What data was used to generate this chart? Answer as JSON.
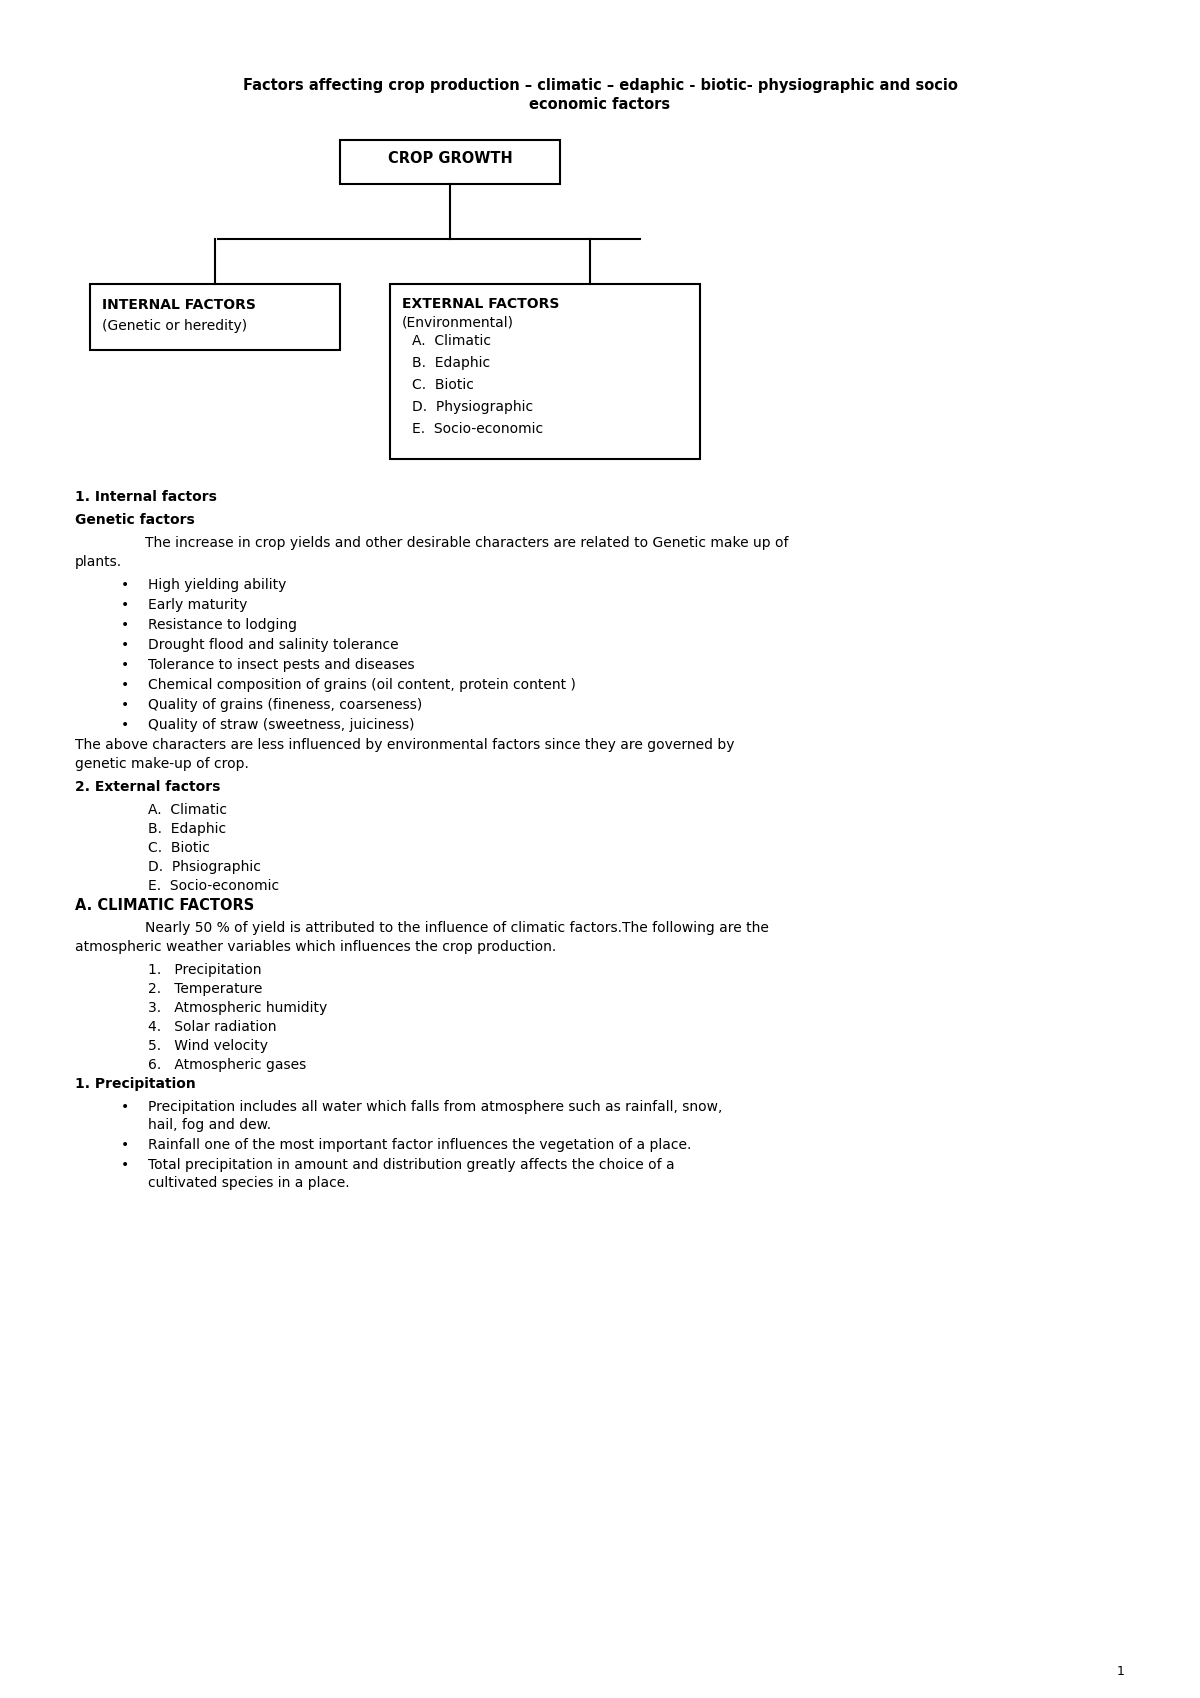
{
  "bg_color": "#ffffff",
  "page_title_line1": "Factors affecting crop production – climatic – edaphic - biotic- physiographic and socio",
  "page_title_line2": "economic factors",
  "diagram": {
    "root_label": "CROP GROWTH",
    "left_box_line1": "INTERNAL FACTORS",
    "left_box_line2": "(Genetic or heredity)",
    "right_box_line1": "EXTERNAL FACTORS",
    "right_box_line2": "(Environmental)",
    "right_box_items": [
      "A.  Climatic",
      "B.  Edaphic",
      "C.  Biotic",
      "D.  Physiographic",
      "E.  Socio-economic"
    ]
  },
  "sections": [
    {
      "type": "heading_bold",
      "text": "1. Internal factors"
    },
    {
      "type": "heading_bold",
      "text": "Genetic factors"
    },
    {
      "type": "paragraph_indent",
      "text": "The increase in crop yields and other desirable characters are related to Genetic make up of plants."
    },
    {
      "type": "bullet",
      "text": "High yielding ability"
    },
    {
      "type": "bullet",
      "text": "Early maturity"
    },
    {
      "type": "bullet",
      "text": "Resistance to lodging"
    },
    {
      "type": "bullet",
      "text": "Drought flood and salinity tolerance"
    },
    {
      "type": "bullet",
      "text": "Tolerance to insect pests and diseases"
    },
    {
      "type": "bullet",
      "text": "Chemical composition of grains (oil content, protein content )"
    },
    {
      "type": "bullet",
      "text": "Quality of grains (fineness, coarseness)"
    },
    {
      "type": "bullet",
      "text": "Quality of straw (sweetness, juiciness)"
    },
    {
      "type": "paragraph_noindent",
      "text": "The above characters are less influenced by environmental factors since they are governed by genetic make-up of crop."
    },
    {
      "type": "heading_bold",
      "text": "2. External factors"
    },
    {
      "type": "alpha_item",
      "text": "A.  Climatic"
    },
    {
      "type": "alpha_item",
      "text": "B.  Edaphic"
    },
    {
      "type": "alpha_item",
      "text": "C.  Biotic"
    },
    {
      "type": "alpha_item",
      "text": "D.  Phsiographic"
    },
    {
      "type": "alpha_item",
      "text": "E.  Socio-economic"
    },
    {
      "type": "heading_bold_caps",
      "text": "A. CLIMATIC FACTORS"
    },
    {
      "type": "paragraph_indent",
      "text": "Nearly 50 % of yield is attributed to the influence of climatic factors.The following are the atmospheric weather variables which influences the crop production."
    },
    {
      "type": "numbered_item",
      "text": "1.   Precipitation"
    },
    {
      "type": "numbered_item",
      "text": "2.   Temperature"
    },
    {
      "type": "numbered_item",
      "text": "3.   Atmospheric humidity"
    },
    {
      "type": "numbered_item",
      "text": "4.   Solar radiation"
    },
    {
      "type": "numbered_item",
      "text": "5.   Wind velocity"
    },
    {
      "type": "numbered_item",
      "text": "6.   Atmospheric gases"
    },
    {
      "type": "heading_bold",
      "text": "1. Precipitation"
    },
    {
      "type": "bullet",
      "text": "Precipitation includes all water which falls from atmosphere such as rainfall, snow, hail, fog and dew."
    },
    {
      "type": "bullet",
      "text": "Rainfall one of the most important factor influences the vegetation of a place."
    },
    {
      "type": "bullet",
      "text": "Total precipitation in amount and distribution greatly affects the choice of a cultivated species in a place."
    }
  ],
  "page_number": "1"
}
